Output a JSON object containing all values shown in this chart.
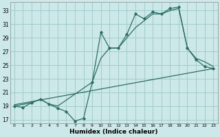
{
  "xlabel": "Humidex (Indice chaleur)",
  "background_color": "#cde8e8",
  "grid_color": "#a0cccc",
  "line_color": "#2a6e62",
  "xlim": [
    -0.5,
    23.5
  ],
  "ylim": [
    16.5,
    34.2
  ],
  "xticks": [
    0,
    1,
    2,
    3,
    4,
    5,
    6,
    7,
    8,
    9,
    10,
    11,
    12,
    13,
    14,
    15,
    16,
    17,
    18,
    19,
    20,
    21,
    22,
    23
  ],
  "yticks": [
    17,
    19,
    21,
    23,
    25,
    27,
    29,
    31,
    33
  ],
  "jagged_x": [
    0,
    1,
    2,
    3,
    4,
    5,
    6,
    7,
    8,
    9,
    10,
    11,
    12,
    13,
    14,
    15,
    16,
    17,
    18,
    19,
    20,
    21,
    22,
    23
  ],
  "jagged_y": [
    19.0,
    18.8,
    19.5,
    20.0,
    19.3,
    18.7,
    18.2,
    16.8,
    17.2,
    22.5,
    29.8,
    27.5,
    27.5,
    29.5,
    32.5,
    31.8,
    32.8,
    32.5,
    33.3,
    33.5,
    27.5,
    25.8,
    24.8,
    24.5
  ],
  "smooth_x": [
    0,
    2,
    3,
    4,
    5,
    9,
    10,
    11,
    12,
    13,
    14,
    15,
    16,
    17,
    18,
    19,
    20,
    21,
    22,
    23
  ],
  "smooth_y": [
    19.0,
    19.5,
    20.0,
    19.3,
    19.0,
    22.5,
    26.0,
    27.5,
    27.5,
    29.0,
    30.5,
    31.5,
    32.5,
    32.5,
    33.0,
    33.3,
    27.5,
    26.0,
    25.5,
    24.8
  ],
  "trend_x": [
    0,
    23
  ],
  "trend_y": [
    19.2,
    24.5
  ]
}
